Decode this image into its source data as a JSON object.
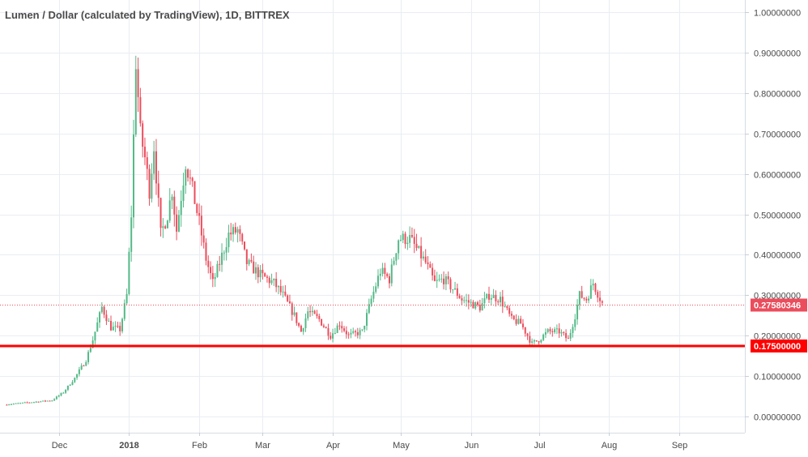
{
  "chart_data": {
    "type": "candlestick",
    "title": "Lumen / Dollar (calculated by TradingView), 1D, BITTREX",
    "interval": "1D",
    "exchange": "BITTREX",
    "x_tick_labels": [
      "Dec",
      "2018",
      "Feb",
      "Mar",
      "Apr",
      "May",
      "Jun",
      "Jul",
      "Aug",
      "Sep"
    ],
    "x_range": [
      "2017-11-05",
      "2018-09-30"
    ],
    "ylim": [
      -0.04,
      1.03
    ],
    "y_ticks": [
      "0.00000000",
      "0.10000000",
      "0.20000000",
      "0.30000000",
      "0.40000000",
      "0.50000000",
      "0.60000000",
      "0.70000000",
      "0.80000000",
      "0.90000000",
      "1.00000000"
    ],
    "y_tick_values": [
      0,
      0.1,
      0.2,
      0.3,
      0.4,
      0.5,
      0.6,
      0.7,
      0.8,
      0.9,
      1.0
    ],
    "grid": true,
    "colors": {
      "up": "#53b987",
      "down": "#eb4d5c",
      "grid": "#e9edf2",
      "axis_text": "#4a4a4a",
      "support_line": "#ff0000",
      "price_line": "#eb4d5c"
    },
    "price_line": {
      "value": 0.2758,
      "label": "0.27580346"
    },
    "support_line": {
      "value": 0.175,
      "label": "0.17500000"
    },
    "series": [
      {
        "name": "",
        "ohlc_keypoints": [
          [
            "2017-11-08",
            0.03
          ],
          [
            "2017-11-20",
            0.036
          ],
          [
            "2017-11-28",
            0.04
          ],
          [
            "2017-12-03",
            0.06
          ],
          [
            "2017-12-08",
            0.095
          ],
          [
            "2017-12-13",
            0.14
          ],
          [
            "2017-12-16",
            0.19
          ],
          [
            "2017-12-20",
            0.27
          ],
          [
            "2017-12-24",
            0.22
          ],
          [
            "2017-12-28",
            0.215
          ],
          [
            "2017-12-31",
            0.3
          ],
          [
            "2018-01-02",
            0.5
          ],
          [
            "2018-01-04",
            0.88
          ],
          [
            "2018-01-06",
            0.7
          ],
          [
            "2018-01-08",
            0.64
          ],
          [
            "2018-01-10",
            0.56
          ],
          [
            "2018-01-12",
            0.67
          ],
          [
            "2018-01-15",
            0.45
          ],
          [
            "2018-01-18",
            0.5
          ],
          [
            "2018-01-20",
            0.56
          ],
          [
            "2018-01-22",
            0.46
          ],
          [
            "2018-01-26",
            0.63
          ],
          [
            "2018-01-29",
            0.56
          ],
          [
            "2018-02-01",
            0.48
          ],
          [
            "2018-02-04",
            0.39
          ],
          [
            "2018-02-07",
            0.33
          ],
          [
            "2018-02-10",
            0.38
          ],
          [
            "2018-02-14",
            0.45
          ],
          [
            "2018-02-18",
            0.46
          ],
          [
            "2018-02-22",
            0.38
          ],
          [
            "2018-02-28",
            0.35
          ],
          [
            "2018-03-06",
            0.33
          ],
          [
            "2018-03-10",
            0.3
          ],
          [
            "2018-03-15",
            0.25
          ],
          [
            "2018-03-18",
            0.21
          ],
          [
            "2018-03-21",
            0.26
          ],
          [
            "2018-03-26",
            0.24
          ],
          [
            "2018-03-31",
            0.2
          ],
          [
            "2018-04-04",
            0.23
          ],
          [
            "2018-04-08",
            0.2
          ],
          [
            "2018-04-14",
            0.21
          ],
          [
            "2018-04-18",
            0.29
          ],
          [
            "2018-04-22",
            0.36
          ],
          [
            "2018-04-26",
            0.34
          ],
          [
            "2018-04-30",
            0.44
          ],
          [
            "2018-05-05",
            0.44
          ],
          [
            "2018-05-12",
            0.38
          ],
          [
            "2018-05-16",
            0.33
          ],
          [
            "2018-05-20",
            0.34
          ],
          [
            "2018-05-25",
            0.31
          ],
          [
            "2018-05-28",
            0.29
          ],
          [
            "2018-06-05",
            0.27
          ],
          [
            "2018-06-09",
            0.3
          ],
          [
            "2018-06-14",
            0.29
          ],
          [
            "2018-06-19",
            0.24
          ],
          [
            "2018-06-23",
            0.23
          ],
          [
            "2018-06-28",
            0.18
          ],
          [
            "2018-07-01",
            0.19
          ],
          [
            "2018-07-05",
            0.21
          ],
          [
            "2018-07-10",
            0.21
          ],
          [
            "2018-07-14",
            0.19
          ],
          [
            "2018-07-17",
            0.25
          ],
          [
            "2018-07-19",
            0.3
          ],
          [
            "2018-07-22",
            0.29
          ],
          [
            "2018-07-25",
            0.33
          ],
          [
            "2018-07-29",
            0.28
          ]
        ]
      }
    ]
  }
}
